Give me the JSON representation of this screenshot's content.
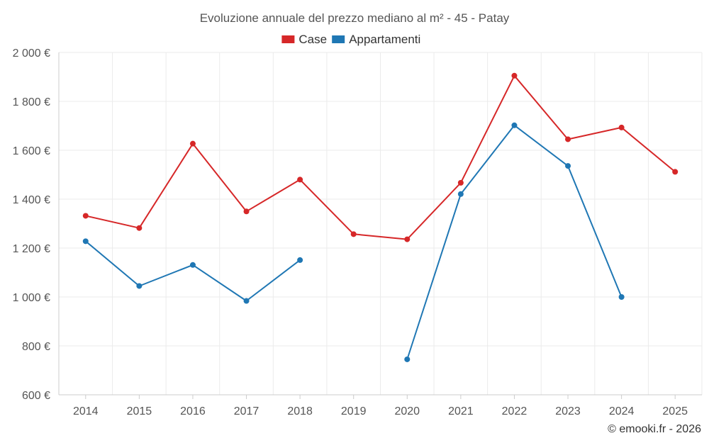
{
  "chart_data": {
    "type": "line",
    "title": "Evoluzione annuale del prezzo mediano al m² - 45 - Patay",
    "xlabel": "",
    "ylabel": "",
    "categories": [
      "2014",
      "2015",
      "2016",
      "2017",
      "2018",
      "2019",
      "2020",
      "2021",
      "2022",
      "2023",
      "2024",
      "2025"
    ],
    "ylim": [
      600,
      2000
    ],
    "yticks": [
      600,
      800,
      1000,
      1200,
      1400,
      1600,
      1800,
      2000
    ],
    "ytick_labels": [
      "600 €",
      "800 €",
      "1 000 €",
      "1 200 €",
      "1 400 €",
      "1 600 €",
      "1 800 €",
      "2 000 €"
    ],
    "legend_position": "top-center",
    "grid": true,
    "series": [
      {
        "name": "Case",
        "color": "#d62728",
        "values": [
          1332,
          1282,
          1627,
          1350,
          1480,
          1257,
          1236,
          1467,
          1905,
          1645,
          1693,
          1512
        ]
      },
      {
        "name": "Appartamenti",
        "color": "#1f77b4",
        "values": [
          1228,
          1045,
          1131,
          984,
          1151,
          null,
          745,
          1421,
          1702,
          1536,
          1000,
          null
        ]
      }
    ]
  },
  "credit": "© emooki.fr - 2026"
}
